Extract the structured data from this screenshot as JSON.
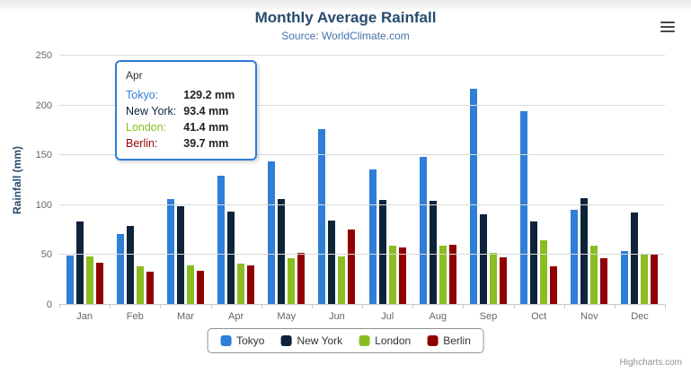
{
  "chart_data": {
    "type": "bar",
    "title": "Monthly Average Rainfall",
    "subtitle": "Source: WorldClimate.com",
    "xlabel": "",
    "ylabel": "Rainfall (mm)",
    "ylim": [
      0,
      250
    ],
    "yticks": [
      0,
      50,
      100,
      150,
      200,
      250
    ],
    "grid": true,
    "legend_position": "bottom",
    "categories": [
      "Jan",
      "Feb",
      "Mar",
      "Apr",
      "May",
      "Jun",
      "Jul",
      "Aug",
      "Sep",
      "Oct",
      "Nov",
      "Dec"
    ],
    "series": [
      {
        "name": "Tokyo",
        "color": "#2f7ed8",
        "values": [
          49.9,
          71.5,
          106.4,
          129.2,
          144.0,
          176.0,
          135.6,
          148.5,
          216.4,
          194.1,
          95.6,
          54.4
        ]
      },
      {
        "name": "New York",
        "color": "#0d233a",
        "values": [
          83.6,
          78.8,
          98.5,
          93.4,
          106.0,
          84.5,
          105.0,
          104.3,
          91.2,
          83.5,
          106.6,
          92.3
        ]
      },
      {
        "name": "London",
        "color": "#8bbc21",
        "values": [
          48.9,
          38.8,
          39.3,
          41.4,
          47.0,
          48.3,
          59.0,
          59.6,
          52.4,
          65.2,
          59.3,
          51.2
        ]
      },
      {
        "name": "Berlin",
        "color": "#910000",
        "values": [
          42.4,
          33.2,
          34.5,
          39.7,
          52.6,
          75.5,
          57.4,
          60.4,
          47.6,
          39.1,
          46.8,
          51.1
        ]
      }
    ]
  },
  "tooltip": {
    "header": "Apr",
    "rows": [
      {
        "name": "Tokyo",
        "value": "129.2 mm",
        "color": "#2f7ed8"
      },
      {
        "name": "New York",
        "value": "93.4 mm",
        "color": "#0d233a"
      },
      {
        "name": "London",
        "value": "41.4 mm",
        "color": "#8bbc21"
      },
      {
        "name": "Berlin",
        "value": "39.7 mm",
        "color": "#910000"
      }
    ]
  },
  "credits": "Highcharts.com"
}
